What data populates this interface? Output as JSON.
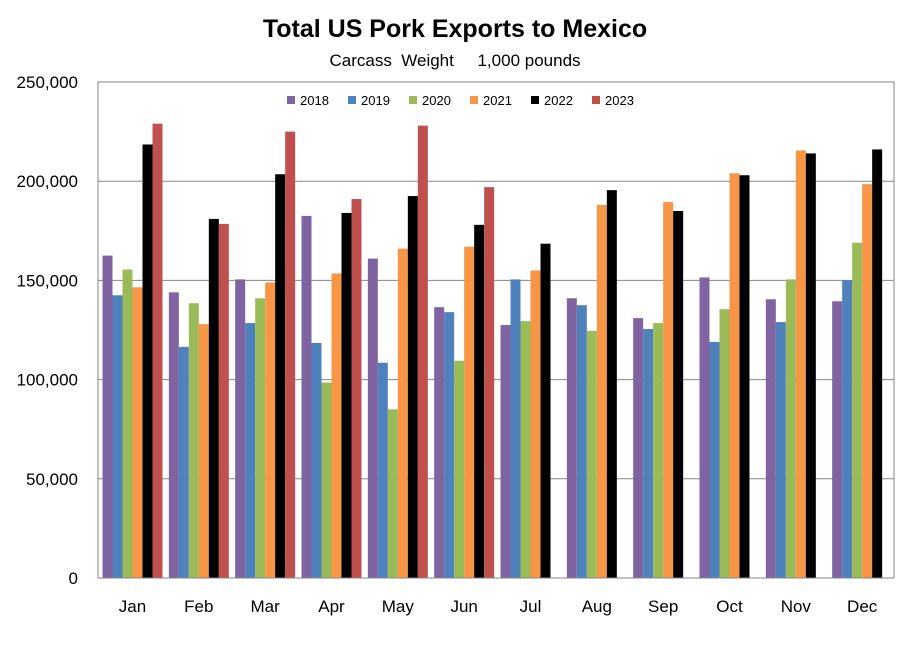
{
  "chart_data": {
    "type": "bar",
    "title": "Total US Pork Exports to Mexico",
    "subtitle": "Carcass  Weight     1,000 pounds",
    "xlabel": "",
    "ylabel": "",
    "ylim": [
      0,
      250000
    ],
    "ytick_step": 50000,
    "yticks": [
      "0",
      "50,000",
      "100,000",
      "150,000",
      "200,000",
      "250,000"
    ],
    "grid": true,
    "legend_position": "top-center",
    "categories": [
      "Jan",
      "Feb",
      "Mar",
      "Apr",
      "May",
      "Jun",
      "Jul",
      "Aug",
      "Sep",
      "Oct",
      "Nov",
      "Dec"
    ],
    "series": [
      {
        "name": "2018",
        "color": "#8064A2",
        "values": [
          162500,
          144000,
          150500,
          182500,
          161000,
          136500,
          127500,
          141000,
          131000,
          151500,
          140500,
          139500
        ]
      },
      {
        "name": "2019",
        "color": "#4F81BD",
        "values": [
          142500,
          116500,
          128500,
          118500,
          108500,
          134000,
          150500,
          137500,
          125500,
          119000,
          129000,
          150000
        ]
      },
      {
        "name": "2020",
        "color": "#9BBB59",
        "values": [
          155500,
          138500,
          141000,
          98500,
          85000,
          109500,
          129500,
          124500,
          128500,
          135500,
          150500,
          169000
        ]
      },
      {
        "name": "2021",
        "color": "#F79646",
        "values": [
          146500,
          128000,
          149000,
          153500,
          166000,
          167000,
          155000,
          188000,
          189500,
          204000,
          215500,
          198500
        ]
      },
      {
        "name": "2022",
        "color": "#000000",
        "values": [
          218500,
          181000,
          203500,
          184000,
          192500,
          178000,
          168500,
          195500,
          185000,
          203000,
          214000,
          216000
        ]
      },
      {
        "name": "2023",
        "color": "#C0504D",
        "values": [
          229000,
          178500,
          225000,
          191000,
          228000,
          197000,
          null,
          null,
          null,
          null,
          null,
          null
        ]
      }
    ]
  }
}
